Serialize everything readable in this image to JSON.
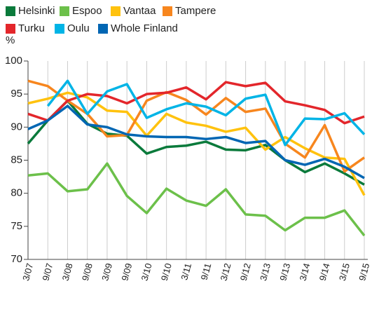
{
  "chart_data": {
    "type": "line",
    "ylabel": "%",
    "categories": [
      "3/07",
      "9/07",
      "3/08",
      "9/08",
      "3/09",
      "9/09",
      "3/10",
      "9/10",
      "3/11",
      "9/11",
      "3/12",
      "9/12",
      "3/13",
      "9/13",
      "3/14",
      "9/14",
      "3/15",
      "9/15"
    ],
    "series": [
      {
        "name": "Helsinki",
        "color": "#0a7a3b",
        "values": [
          87.5,
          91,
          94,
          90.5,
          89,
          88.7,
          86,
          87,
          87.2,
          87.8,
          86.6,
          86.5,
          87.3,
          85,
          83.2,
          84.5,
          83,
          81.3
        ]
      },
      {
        "name": "Espoo",
        "color": "#6cc04a",
        "values": [
          82.7,
          83,
          80.3,
          80.6,
          84.5,
          79.6,
          77,
          80.7,
          78.9,
          78.1,
          80.6,
          76.8,
          76.6,
          74.4,
          76.3,
          76.3,
          77.4,
          73.6
        ]
      },
      {
        "name": "Vantaa",
        "color": "#ffc20e",
        "values": [
          93.6,
          94.3,
          95.2,
          94.5,
          92.5,
          92.3,
          88.7,
          92,
          90.7,
          90.2,
          89.3,
          89.9,
          86.6,
          88.5,
          86.8,
          85.4,
          85.2,
          79.7
        ]
      },
      {
        "name": "Tampere",
        "color": "#f7861e",
        "values": [
          97,
          96.2,
          94,
          92,
          88.6,
          88.8,
          94,
          95.3,
          94.1,
          91.9,
          94.4,
          92.3,
          92.8,
          87.5,
          85.4,
          90.3,
          83.3,
          85.4
        ]
      },
      {
        "name": "Turku",
        "color": "#e3262b",
        "values": [
          92,
          91,
          94,
          95,
          94.7,
          93.6,
          95,
          95.2,
          96,
          94.2,
          96.8,
          96.2,
          96.7,
          93.9,
          93.3,
          92.6,
          90.6,
          91.6
        ]
      },
      {
        "name": "Oulu",
        "color": "#00b4e6",
        "values": [
          null,
          93.2,
          97,
          92,
          95.4,
          96.5,
          91.4,
          92.7,
          93.6,
          93.1,
          91.8,
          94.3,
          94.9,
          87.3,
          91.3,
          91.2,
          92.1,
          88.9
        ]
      },
      {
        "name": "Whole Finland",
        "color": "#0066b3",
        "values": [
          89.7,
          91,
          93.2,
          90.4,
          90,
          88.9,
          88.6,
          88.5,
          88.5,
          88.2,
          88.5,
          87.6,
          87.9,
          85,
          84.3,
          85.2,
          84,
          82.3
        ]
      }
    ],
    "ylim": [
      70,
      100
    ],
    "yticks": [
      70,
      75,
      80,
      85,
      90,
      95,
      100
    ],
    "grid": true
  }
}
